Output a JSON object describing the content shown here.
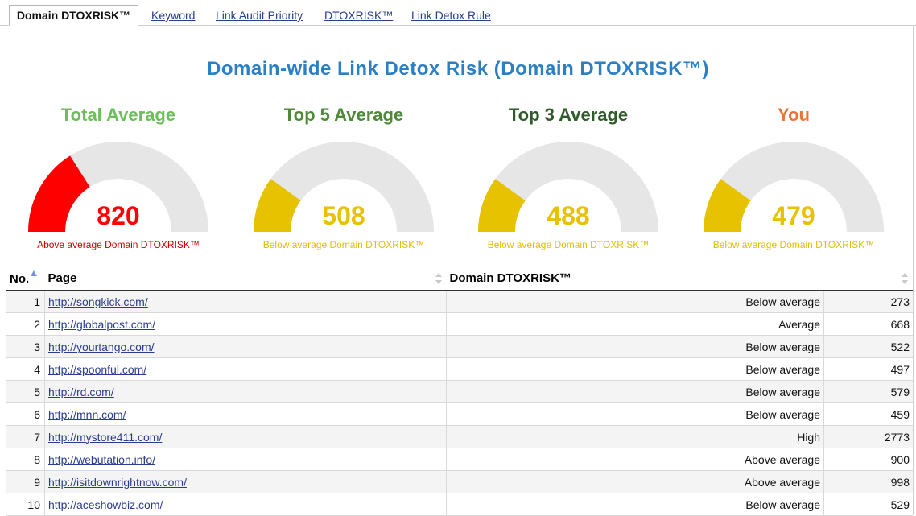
{
  "tabs": {
    "active": "Domain DTOXRISK™",
    "links": [
      "Keyword",
      "Link Audit Priority",
      "DTOXRISK™",
      "Link Detox Rule"
    ]
  },
  "main_title": "Domain-wide Link Detox Risk (Domain DTOXRISK™)",
  "gauges": [
    {
      "title": "Total Average",
      "value": "820",
      "desc": "Above average Domain DTOXRISK™",
      "fill_fraction": 0.32,
      "title_color": "#6cbf5b",
      "value_color": "#ff0000",
      "fill_color": "#ff0000",
      "desc_color": "#cc0000"
    },
    {
      "title": "Top 5 Average",
      "value": "508",
      "desc": "Below average Domain DTOXRISK™",
      "fill_fraction": 0.2,
      "title_color": "#4e8a3a",
      "value_color": "#e6c200",
      "fill_color": "#e6c200",
      "desc_color": "#e0bf00"
    },
    {
      "title": "Top 3 Average",
      "value": "488",
      "desc": "Below average Domain DTOXRISK™",
      "fill_fraction": 0.2,
      "title_color": "#2f5a2a",
      "value_color": "#e6c200",
      "fill_color": "#e6c200",
      "desc_color": "#e0bf00"
    },
    {
      "title": "You",
      "value": "479",
      "desc": "Below average Domain DTOXRISK™",
      "fill_fraction": 0.2,
      "title_color": "#e8743b",
      "value_color": "#e6c200",
      "fill_color": "#e6c200",
      "desc_color": "#e0bf00"
    }
  ],
  "table": {
    "headers": {
      "no": "No.",
      "page": "Page",
      "risk": "Domain DTOXRISK™"
    },
    "rows": [
      {
        "no": "1",
        "page": "http://songkick.com/",
        "risk": "Below average",
        "score": "273"
      },
      {
        "no": "2",
        "page": "http://globalpost.com/",
        "risk": "Average",
        "score": "668"
      },
      {
        "no": "3",
        "page": "http://yourtango.com/",
        "risk": "Below average",
        "score": "522"
      },
      {
        "no": "4",
        "page": "http://spoonful.com/",
        "risk": "Below average",
        "score": "497"
      },
      {
        "no": "5",
        "page": "http://rd.com/",
        "risk": "Below average",
        "score": "579"
      },
      {
        "no": "6",
        "page": "http://mnn.com/",
        "risk": "Below average",
        "score": "459"
      },
      {
        "no": "7",
        "page": "http://mystore411.com/",
        "risk": "High",
        "score": "2773"
      },
      {
        "no": "8",
        "page": "http://webutation.info/",
        "risk": "Above average",
        "score": "900"
      },
      {
        "no": "9",
        "page": "http://isitdownrightnow.com/",
        "risk": "Above average",
        "score": "998"
      },
      {
        "no": "10",
        "page": "http://aceshowbiz.com/",
        "risk": "Below average",
        "score": "529"
      }
    ]
  }
}
